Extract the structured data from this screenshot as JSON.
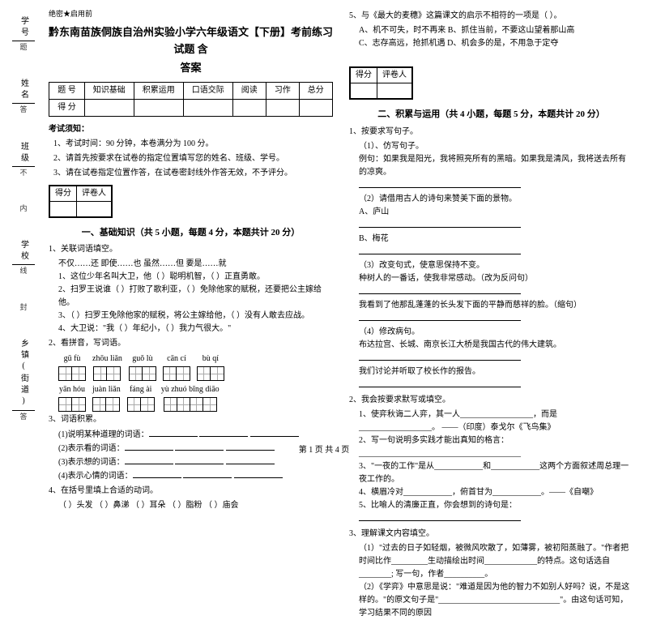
{
  "meta": {
    "secret": "绝密★启用前",
    "title_line1": "黔东南苗族侗族自治州实验小学六年级语文【下册】考前练习试题 含",
    "title_line2": "答案",
    "footer": "第 1 页 共 4 页"
  },
  "sidebar": {
    "labels": [
      "学号",
      "姓名",
      "班级",
      "学校",
      "乡镇(街道)"
    ],
    "hints": [
      "题",
      "答",
      "不",
      "内",
      "线",
      "封",
      "答"
    ]
  },
  "score_table": {
    "headers": [
      "题    号",
      "知识基础",
      "积累运用",
      "口语交际",
      "阅读",
      "习作",
      "总分"
    ],
    "row_label": "得    分"
  },
  "notes_title": "考试须知：",
  "notes": [
    "1、考试时间：90 分钟，本卷满分为 100 分。",
    "2、请首先按要求在试卷的指定位置填写您的姓名、班级、学号。",
    "3、请在试卷指定位置作答，在试卷密封线外作答无效，不予评分。"
  ],
  "section_head": {
    "a": "得分",
    "b": "评卷人"
  },
  "section1": {
    "title": "一、基础知识（共 5 小题，每题 4 分，本题共计 20 分）",
    "q1_title": "1、关联词语填空。",
    "q1_words": "不仅……还        即使……也        虽然……但        要是……就",
    "q1_a": "1、这位少年名叫大卫，他（        ）聪明机智，（        ）正直勇敢。",
    "q1_b": "2、扫罗王说谁（         ）打败了歌利亚，（         ）免除他家的赋税，还要把公主嫁给他。",
    "q1_c": "3、（        ）扫罗王免除他家的赋税，将公主嫁给他，（        ）没有人敢去应战。",
    "q1_d": "4、大卫说：\"我（        ）年纪小，（        ）我力气很大。\"",
    "q2_title": "2、看拼音，写词语。",
    "pinyin_row1": [
      "gū  fù",
      "zhōu liǎn",
      "guǒ  lù",
      "cān  cí",
      "bù  qí"
    ],
    "pinyin_row2": [
      "yān  hóu",
      "juàn liǎn",
      "fáng  ài",
      "yù  zhuó bīng  diāo"
    ],
    "q3_title": "3、词语积累。",
    "q3_items": [
      "(1)说明某种道理的词语：",
      "(2)表示看的词语：",
      "(3)表示想的词语：",
      "(4)表示心情的词语："
    ],
    "q4_title": "4、在括号里填上合适的动词。",
    "q4_line": "（    ）头发    （    ）鼻涕    （    ）耳朵    （    ）脂粉    （    ）庙会"
  },
  "right": {
    "q5_title": "5、与《最大的麦穗》这篇课文的启示不相符的一项是（       ）。",
    "q5_a": "A、机不可失，时不再来        B、抓住当前，不要这山望着那山高",
    "q5_b": "C、志存高远，抢抓机遇        D、机会多的是，不用急于定夺",
    "section2_title": "二、积累与运用（共 4 小题，每题 5 分，本题共计 20 分）",
    "q1_title": "1、按要求写句子。",
    "q1_sub": "（1）、仿写句子。",
    "q1_ex": "例句：如果我是阳光，我将照亮所有的黑暗。如果我是清风，我将送去所有的凉爽。",
    "q1_blank": "____________________________________________________",
    "q1_2": "（2）请借用古人的诗句来赞美下面的景物。",
    "q1_2a": "A、庐山",
    "q1_2b": "B、梅花",
    "q1_3": "（3）改变句式，使意思保持不变。",
    "q1_3a": "种树人的一番话，使我非常感动。（改为反问句）",
    "q1_3b": "我看到了他那乱蓬蓬的长头发下面的平静而慈祥的脸。（缩句）",
    "q1_4": "（4）修改病句。",
    "q1_4a": "布达拉宫、长城、南京长江大桥是我国古代的伟大建筑。",
    "q1_4b": "我们讨论并听取了校长作的报告。",
    "q2_title": "2、我会按要求默写或填空。",
    "q2_1": "1、使弈秋诲二人弈，其一人__________________，而是__________________。  ——（印度）泰戈尔《飞鸟集》",
    "q2_2": "2、写一句说明多实践才能出真知的格言：________________________________________",
    "q2_3": "3、\"一夜的工作\"是从____________和____________这两个方面叙述周总理一夜工作的。",
    "q2_4": "4、横眉冷对____________，俯首甘为____________。——《自嘲》",
    "q2_5": "5、比喻人的清廉正直，你会想到的诗句是：",
    "q3_title": "3、理解课文内容填空。",
    "q3_1": "（1）\"过去的日子如轻烟，被微风吹散了，如薄雾，被初阳蒸融了。\"作者把时间比作_________生动描绘出时间_____________的特点。这句话选自________; 写一句，作者__________。",
    "q3_2": "（2）《学弈》中意思是说：\"难道是因为他的智力不如别人好吗？说，不是这样的。\"的原文句子是\"______________________________\"。由这句话可知，学习结果不同的原因"
  }
}
